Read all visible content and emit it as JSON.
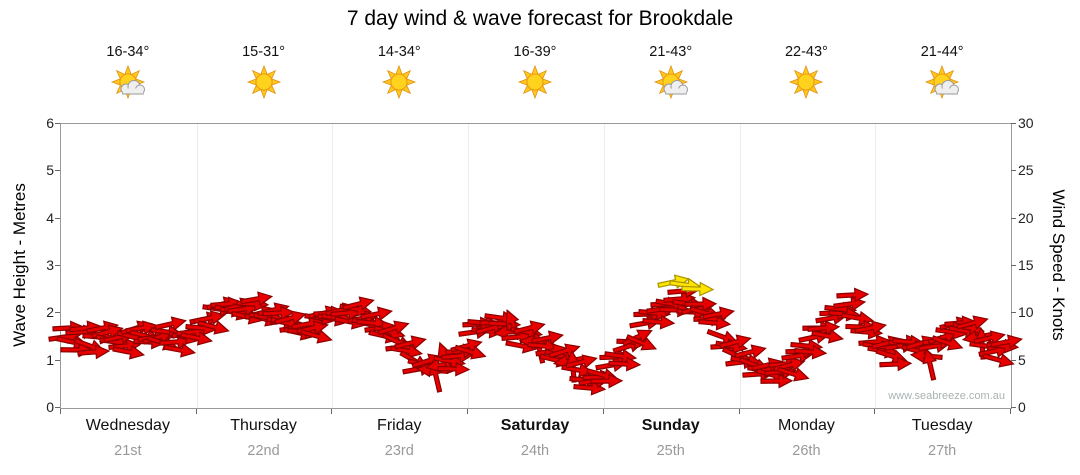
{
  "title": "7 day wind & wave forecast for Brookdale",
  "watermark": "www.seabreeze.com.au",
  "days": [
    {
      "name": "Wednesday",
      "date": "21st",
      "temp": "16-34°",
      "icon": "sun-cloud",
      "bold": false
    },
    {
      "name": "Thursday",
      "date": "22nd",
      "temp": "15-31°",
      "icon": "sun",
      "bold": false
    },
    {
      "name": "Friday",
      "date": "23rd",
      "temp": "14-34°",
      "icon": "sun",
      "bold": false
    },
    {
      "name": "Saturday",
      "date": "24th",
      "temp": "16-39°",
      "icon": "sun",
      "bold": true
    },
    {
      "name": "Sunday",
      "date": "25th",
      "temp": "21-43°",
      "icon": "sun-cloud",
      "bold": true
    },
    {
      "name": "Monday",
      "date": "26th",
      "temp": "22-43°",
      "icon": "sun",
      "bold": false
    },
    {
      "name": "Tuesday",
      "date": "27th",
      "temp": "21-44°",
      "icon": "sun-cloud",
      "bold": false
    }
  ],
  "axes": {
    "left_label": "Wave Height - Metres",
    "left_ticks": [
      0,
      1,
      2,
      3,
      4,
      5,
      6
    ],
    "left_range": [
      0,
      6
    ],
    "right_label": "Wind Speed - Knots",
    "right_ticks": [
      0,
      5,
      10,
      15,
      20,
      25,
      30
    ],
    "right_range": [
      0,
      30
    ]
  },
  "colors": {
    "arrow_red": "#E60000",
    "arrow_red_stroke": "#8B0000",
    "arrow_yellow": "#FFE400",
    "arrow_yellow_stroke": "#A99400",
    "axis": "#999999",
    "date_gray": "#999999"
  },
  "chart_data": {
    "type": "scatter",
    "title": "7 day wind & wave forecast for Brookdale",
    "categories": [
      "Wednesday 21st",
      "Thursday 22nd",
      "Friday 23rd",
      "Saturday 24th",
      "Sunday 25th",
      "Monday 26th",
      "Tuesday 27th"
    ],
    "x_unit": "fraction_of_7_day_week",
    "ylabel_left": "Wave Height - Metres",
    "ylabel_right": "Wind Speed - Knots",
    "ylim_knots": [
      0,
      30
    ],
    "ylim_metres": [
      0,
      6
    ],
    "grid": false,
    "legend": "none",
    "series": [
      {
        "name": "wind-arrows",
        "marker": "arrow",
        "color": "#E60000",
        "points_t_knots_rot": [
          [
            0.004,
            7.5,
            -8
          ],
          [
            0.013,
            7,
            12
          ],
          [
            0.022,
            8,
            -3
          ],
          [
            0.031,
            6.5,
            20
          ],
          [
            0.04,
            7.5,
            5
          ],
          [
            0.049,
            8,
            -14
          ],
          [
            0.058,
            7,
            8
          ],
          [
            0.067,
            6.5,
            -5
          ],
          [
            0.076,
            7.5,
            15
          ],
          [
            0.085,
            8.5,
            -10
          ],
          [
            0.094,
            7,
            3
          ],
          [
            0.103,
            7.5,
            -18
          ],
          [
            0.112,
            8,
            8
          ],
          [
            0.121,
            7,
            -4
          ],
          [
            0.13,
            7.5,
            12
          ],
          [
            0.139,
            8,
            -6
          ],
          [
            0.148,
            8.5,
            5
          ],
          [
            0.157,
            9.5,
            -12
          ],
          [
            0.166,
            10.5,
            8
          ],
          [
            0.175,
            11,
            -5
          ],
          [
            0.184,
            10,
            15
          ],
          [
            0.193,
            10.5,
            -8
          ],
          [
            0.202,
            11,
            3
          ],
          [
            0.211,
            10,
            -15
          ],
          [
            0.22,
            9.5,
            10
          ],
          [
            0.229,
            10,
            -3
          ],
          [
            0.238,
            9,
            12
          ],
          [
            0.247,
            8.5,
            -8
          ],
          [
            0.256,
            8,
            5
          ],
          [
            0.265,
            8.5,
            -12
          ],
          [
            0.274,
            9.5,
            8
          ],
          [
            0.283,
            10,
            -4
          ],
          [
            0.292,
            9.5,
            8
          ],
          [
            0.301,
            10,
            -5
          ],
          [
            0.31,
            10.5,
            10
          ],
          [
            0.319,
            9.5,
            -12
          ],
          [
            0.328,
            9,
            5
          ],
          [
            0.337,
            8.5,
            -8
          ],
          [
            0.346,
            8,
            15
          ],
          [
            0.355,
            7,
            25
          ],
          [
            0.364,
            6,
            10
          ],
          [
            0.373,
            5,
            30
          ],
          [
            0.382,
            4.5,
            15
          ],
          [
            0.391,
            4,
            185
          ],
          [
            0.4,
            4.5,
            170
          ],
          [
            0.409,
            5,
            10
          ],
          [
            0.418,
            5.5,
            -5
          ],
          [
            0.427,
            6.5,
            -15
          ],
          [
            0.436,
            8,
            -8
          ],
          [
            0.445,
            9,
            5
          ],
          [
            0.454,
            8.5,
            -15
          ],
          [
            0.463,
            9.5,
            8
          ],
          [
            0.472,
            8,
            175
          ],
          [
            0.481,
            7.5,
            -5
          ],
          [
            0.49,
            8,
            10
          ],
          [
            0.499,
            7,
            185
          ],
          [
            0.508,
            6.5,
            5
          ],
          [
            0.517,
            6,
            -10
          ],
          [
            0.526,
            5.5,
            15
          ],
          [
            0.535,
            5,
            170
          ],
          [
            0.544,
            4,
            10
          ],
          [
            0.553,
            3,
            5
          ],
          [
            0.562,
            2.8,
            -8
          ],
          [
            0.571,
            3.5,
            15
          ],
          [
            0.58,
            4.5,
            -10
          ],
          [
            0.589,
            5.5,
            8
          ],
          [
            0.598,
            6.5,
            -18
          ],
          [
            0.607,
            7.5,
            -25
          ],
          [
            0.616,
            9,
            -10
          ],
          [
            0.625,
            10,
            5
          ],
          [
            0.634,
            10.5,
            -8
          ],
          [
            0.643,
            11,
            10
          ],
          [
            0.652,
            11.5,
            -5
          ],
          [
            0.661,
            11,
            8
          ],
          [
            0.67,
            10.5,
            -12
          ],
          [
            0.679,
            10,
            15
          ],
          [
            0.688,
            9,
            5
          ],
          [
            0.697,
            7.5,
            20
          ],
          [
            0.706,
            6.5,
            10
          ],
          [
            0.713,
            5.5,
            25
          ],
          [
            0.722,
            5,
            10
          ],
          [
            0.731,
            4.5,
            20
          ],
          [
            0.74,
            4,
            8
          ],
          [
            0.749,
            3.5,
            15
          ],
          [
            0.758,
            3.8,
            -5
          ],
          [
            0.767,
            4.5,
            -15
          ],
          [
            0.776,
            5.5,
            -8
          ],
          [
            0.785,
            6.5,
            5
          ],
          [
            0.794,
            7.5,
            -12
          ],
          [
            0.803,
            8.5,
            -5
          ],
          [
            0.812,
            9.5,
            -10
          ],
          [
            0.821,
            10.5,
            5
          ],
          [
            0.83,
            11,
            -8
          ],
          [
            0.839,
            9.5,
            10
          ],
          [
            0.848,
            8,
            5
          ],
          [
            0.857,
            7,
            -5
          ],
          [
            0.866,
            6,
            10
          ],
          [
            0.875,
            5.5,
            18
          ],
          [
            0.884,
            6.5,
            -8
          ],
          [
            0.893,
            7,
            5
          ],
          [
            0.902,
            6,
            15
          ],
          [
            0.911,
            5.5,
            185
          ],
          [
            0.92,
            6.5,
            -10
          ],
          [
            0.929,
            7.5,
            -18
          ],
          [
            0.938,
            8,
            8
          ],
          [
            0.947,
            9,
            -5
          ],
          [
            0.956,
            8.5,
            12
          ],
          [
            0.965,
            7.5,
            170
          ],
          [
            0.974,
            6.5,
            8
          ],
          [
            0.983,
            6,
            -12
          ],
          [
            0.992,
            6.5,
            5
          ]
        ]
      },
      {
        "name": "wind-arrows-strong",
        "marker": "arrow",
        "color": "#FFE400",
        "points_t_knots_rot": [
          [
            0.645,
            13.3,
            -12
          ],
          [
            0.658,
            13.0,
            8
          ],
          [
            0.67,
            12.6,
            2
          ]
        ]
      }
    ]
  }
}
